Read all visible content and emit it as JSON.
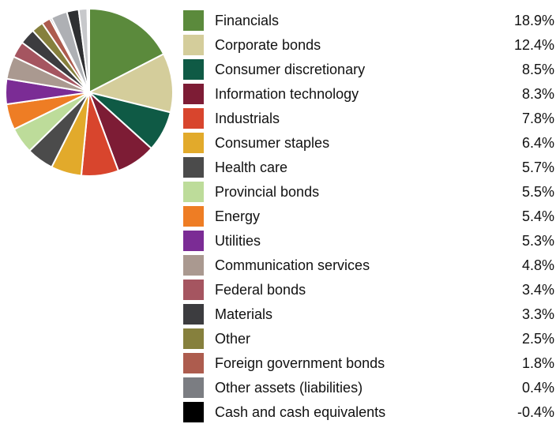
{
  "chart_data": {
    "type": "pie",
    "title": "",
    "legend_position": "right",
    "series": [
      {
        "values": [
          18.9,
          12.4,
          8.5,
          8.3,
          7.8,
          6.4,
          5.7,
          5.5,
          5.4,
          5.3,
          4.8,
          3.4,
          3.3,
          2.5,
          1.8,
          0.4,
          -0.4
        ]
      }
    ],
    "categories": [
      "Financials",
      "Corporate bonds",
      "Consumer discretionary",
      "Information technology",
      "Industrials",
      "Consumer staples",
      "Health care",
      "Provincial bonds",
      "Energy",
      "Utilities",
      "Communication services",
      "Federal bonds",
      "Materials",
      "Other",
      "Foreign government bonds",
      "Other assets (liabilities)",
      "Cash and cash equivalents"
    ],
    "value_labels": [
      "18.9%",
      "12.4%",
      "8.5%",
      "8.3%",
      "7.8%",
      "6.4%",
      "5.7%",
      "5.5%",
      "5.4%",
      "5.3%",
      "4.8%",
      "3.4%",
      "3.3%",
      "2.5%",
      "1.8%",
      "0.4%",
      "-0.4%"
    ],
    "colors": [
      "#5b8a3c",
      "#d4cd9b",
      "#0f5a45",
      "#7d1c35",
      "#d8452d",
      "#e2aa2b",
      "#4b4b4b",
      "#bddc9a",
      "#ee7d24",
      "#7b2c95",
      "#aa9990",
      "#a55560",
      "#3c3c3f",
      "#86803d",
      "#ad5c4e",
      "#7b7d82",
      "#000000"
    ],
    "pie_extra_wedges": [
      {
        "value": 3.4,
        "color": "#aeb0b4"
      },
      {
        "value": 2.5,
        "color": "#2f3032"
      },
      {
        "value": 1.8,
        "color": "#c7c8cb"
      },
      {
        "value": 0.4,
        "color": "#e4e5e6"
      }
    ]
  }
}
